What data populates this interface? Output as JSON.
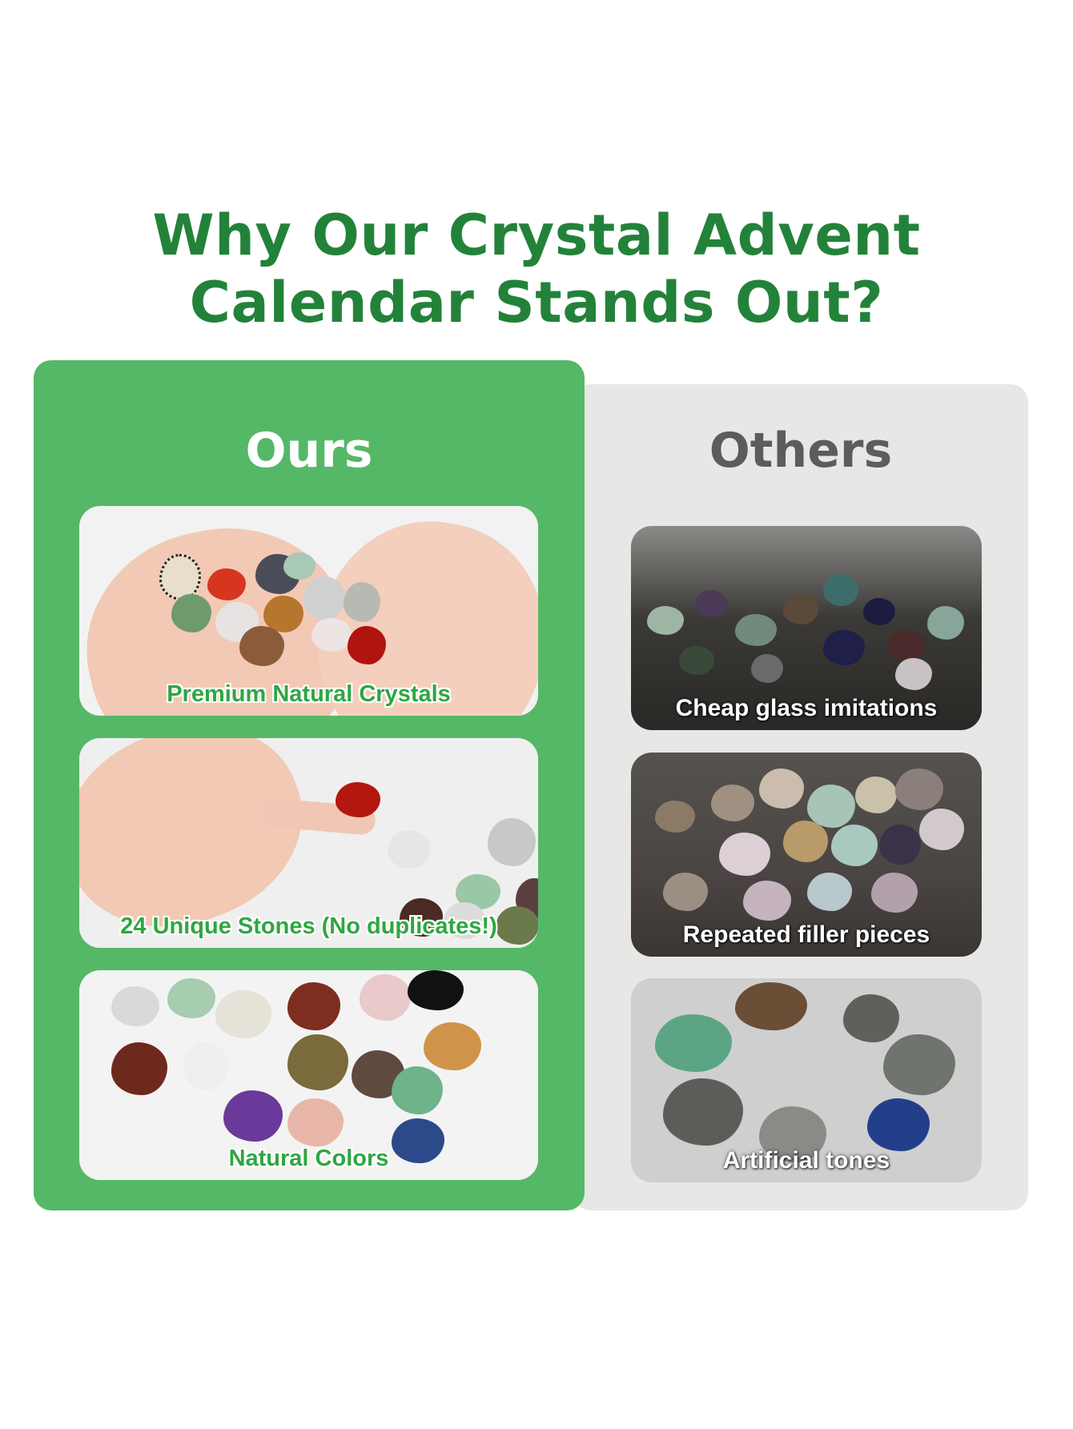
{
  "heading": {
    "line1": "Why Our Crystal Advent",
    "line2": "Calendar Stands Out?"
  },
  "ours": {
    "title": "Ours",
    "cards": [
      {
        "caption": "Premium Natural Crystals",
        "image": "hands-holding-crystals"
      },
      {
        "caption": "24 Unique Stones (No duplicates!)",
        "image": "fingers-holding-red-stone"
      },
      {
        "caption": "Natural Colors",
        "image": "colorful-tumbled-stones"
      }
    ]
  },
  "others": {
    "title": "Others",
    "cards": [
      {
        "caption": "Cheap glass imitations",
        "image": "glass-gravel-pile"
      },
      {
        "caption": "Repeated filler pieces",
        "image": "rough-stone-pile"
      },
      {
        "caption": "Artificial tones",
        "image": "grey-tumbled-stones"
      }
    ]
  },
  "colors": {
    "brand_green": "#23823a",
    "ours_panel": "#55b867",
    "others_panel": "#e7e7e6",
    "others_title": "#5c5c5c"
  }
}
